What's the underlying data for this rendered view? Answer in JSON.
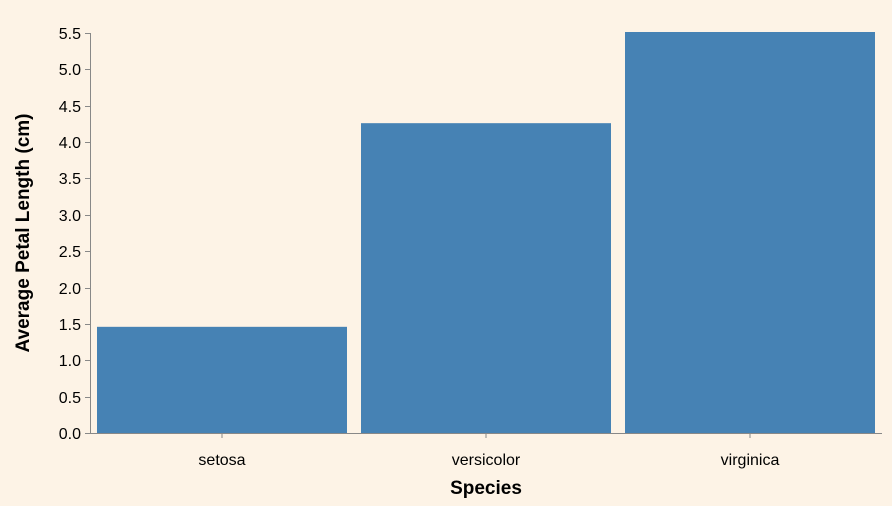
{
  "chart_data": {
    "type": "bar",
    "categories": [
      "setosa",
      "versicolor",
      "virginica"
    ],
    "values": [
      1.46,
      4.26,
      5.55
    ],
    "xlabel": "Species",
    "ylabel": "Average Petal Length (cm)",
    "ylim": [
      0,
      5.5
    ],
    "yticks": [
      "0.0",
      "0.5",
      "1.0",
      "1.5",
      "2.0",
      "2.5",
      "3.0",
      "3.5",
      "4.0",
      "4.5",
      "5.0",
      "5.5"
    ],
    "grid": false,
    "colors": {
      "bar": "#4682b4",
      "background": "#fdf3e6",
      "axis": "#888888"
    }
  }
}
